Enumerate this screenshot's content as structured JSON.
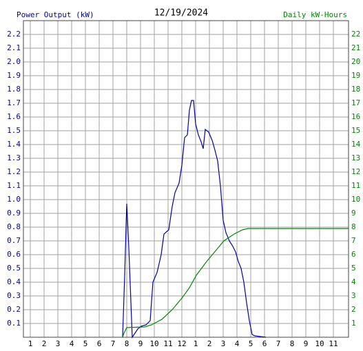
{
  "chart_data": {
    "type": "line",
    "title": "12/19/2024",
    "ylabel": "Power Output (kW)",
    "y2label": "Daily kW-Hours",
    "ylabel_color": "#0000aa",
    "y2label_color": "#008800",
    "grid": true,
    "xlim": [
      0.5,
      24.1
    ],
    "xticks": [
      1,
      2,
      3,
      4,
      5,
      6,
      7,
      8,
      9,
      10,
      11,
      12,
      {
        "value": 13,
        "label": "1"
      },
      {
        "value": 14,
        "label": "2"
      },
      {
        "value": 15,
        "label": "3"
      },
      {
        "value": 16,
        "label": "4"
      },
      {
        "value": 17,
        "label": "5"
      },
      {
        "value": 18,
        "label": "6"
      },
      {
        "value": 19,
        "label": "7"
      },
      {
        "value": 20,
        "label": "8"
      },
      {
        "value": 21,
        "label": "9"
      },
      {
        "value": 22,
        "label": "10"
      },
      {
        "value": 23,
        "label": "11"
      }
    ],
    "ylim": [
      0,
      2.3
    ],
    "yticks": [
      0.1,
      0.2,
      0.3,
      0.4,
      0.5,
      0.6,
      0.7,
      0.8,
      0.9,
      {
        "value": 1,
        "label": "1.0"
      },
      1.1,
      1.2,
      1.3,
      1.4,
      1.5,
      1.6,
      1.7,
      1.8,
      1.9,
      {
        "value": 2,
        "label": "2.0"
      },
      2.1,
      2.2
    ],
    "y2lim": [
      0,
      23
    ],
    "y2ticks": [
      1,
      2,
      3,
      4,
      5,
      6,
      7,
      8,
      9,
      10,
      11,
      12,
      13,
      14,
      15,
      16,
      17,
      18,
      19,
      20,
      21,
      22
    ],
    "series": [
      {
        "color": "#0000aa",
        "x": [
          7.7,
          7.85,
          8.0,
          8.15,
          8.4,
          8.6,
          8.8,
          9.05,
          9.4,
          9.7,
          9.9,
          10.2,
          10.5,
          10.7,
          11.05,
          11.3,
          11.5,
          11.8,
          12.0,
          12.2,
          12.4,
          12.55,
          12.7,
          12.85,
          13.0,
          13.2,
          13.4,
          13.55,
          13.7,
          13.95,
          14.2,
          14.4,
          14.6,
          14.8,
          15.0,
          15.2,
          15.45,
          15.7,
          15.9,
          16.1,
          16.3,
          16.5,
          16.7,
          16.9,
          17.1,
          17.3,
          18.1
        ],
        "values": [
          0,
          0.45,
          0.97,
          0.65,
          0.0,
          0.03,
          0.06,
          0.08,
          0.09,
          0.12,
          0.4,
          0.47,
          0.6,
          0.75,
          0.78,
          0.95,
          1.05,
          1.12,
          1.25,
          1.45,
          1.47,
          1.65,
          1.72,
          1.72,
          1.55,
          1.47,
          1.42,
          1.37,
          1.51,
          1.49,
          1.43,
          1.36,
          1.28,
          1.1,
          0.85,
          0.76,
          0.7,
          0.66,
          0.62,
          0.55,
          0.5,
          0.4,
          0.25,
          0.12,
          0.02,
          0.01,
          0
        ]
      },
      {
        "color": "#008800",
        "axis": "y2",
        "x": [
          7.7,
          7.8,
          8.0,
          9.3,
          9.8,
          10.55,
          11.3,
          12.05,
          12.55,
          13.05,
          13.8,
          14.55,
          15.05,
          15.8,
          16.4,
          16.8,
          24.1
        ],
        "values": [
          0,
          0.3,
          0.7,
          0.75,
          0.9,
          1.3,
          2.0,
          2.9,
          3.6,
          4.5,
          5.5,
          6.4,
          7.0,
          7.5,
          7.8,
          7.9,
          7.9
        ]
      }
    ]
  }
}
